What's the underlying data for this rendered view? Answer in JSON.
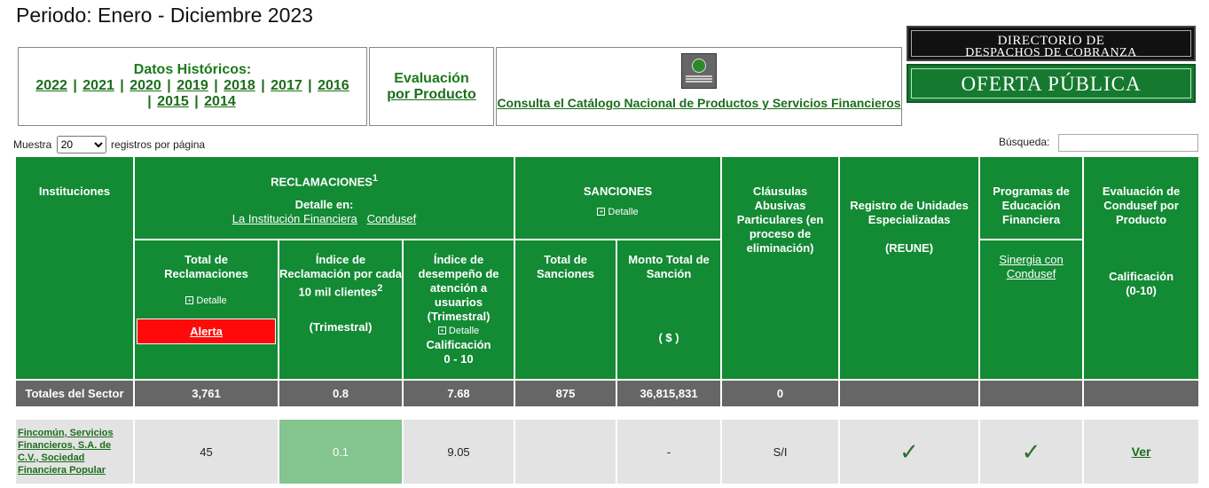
{
  "period": "Periodo: Enero - Diciembre 2023",
  "historic": {
    "title": "Datos Históricos:",
    "years": [
      "2022",
      "2021",
      "2020",
      "2019",
      "2018",
      "2017",
      "2016",
      "2015",
      "2014"
    ]
  },
  "eval_product": {
    "line1": "Evaluación",
    "line2": "por Producto"
  },
  "catalog": {
    "link": "Consulta el Catálogo Nacional de Productos y Servicios Financieros",
    "logo": "catalog-logo"
  },
  "directory_banner": {
    "line1": "Directorio de",
    "line2": "despachos de cobranza"
  },
  "oferta_banner": "OFERTA PÚBLICA",
  "controls": {
    "show_prefix": "Muestra",
    "page_size": "20",
    "show_suffix": "registros por página",
    "search_label": "Búsqueda:",
    "search_value": ""
  },
  "table": {
    "headers": {
      "institutions": "Instituciones",
      "reclamaciones": "RECLAMACIONES",
      "reclamaciones_sup": "1",
      "detalle_en": "Detalle en:",
      "link_inst": "La Institución Financiera",
      "link_condusef": "Condusef",
      "sanciones": "SANCIONES",
      "detalle": "Detalle",
      "clausulas": "Cláusulas Abusivas Particulares (en proceso de eliminación)",
      "reune": "Registro de Unidades Especializadas",
      "reune_abbr": "(REUNE)",
      "programas": "Programas de Educación Financiera",
      "sinergia": "Sinergia con Condusef",
      "evaluacion": "Evaluación de Condusef por Producto",
      "calificacion": "Calificación",
      "calif_range": "(0-10)",
      "total_reclamaciones": "Total de Reclamaciones",
      "alerta": "Alerta",
      "indice_reclamacion": "Índice de Reclamación por cada 10 mil clientes",
      "indice_sup": "2",
      "trimestral": "(Trimestral)",
      "indice_desempeno": "Índice de desempeño de atención a usuarios (Trimestral)",
      "calif_desempeno": "Calificación",
      "calif_desempeno_range": "0 - 10",
      "total_sanciones": "Total de Sanciones",
      "monto_total": "Monto Total de Sanción",
      "moneda": "( $ )"
    },
    "totals": {
      "label": "Totales del Sector",
      "reclamaciones": "3,761",
      "indice": "0.8",
      "desempeno": "7.68",
      "sanciones": "875",
      "monto": "36,815,831",
      "clausulas": "0"
    },
    "rows": [
      {
        "institution": "Fincomún, Servicios Financieros, S.A. de C.V., Sociedad Financiera Popular",
        "reclamaciones": "45",
        "indice": "0.1",
        "desempeno": "9.05",
        "sanciones": "",
        "monto": "-",
        "clausulas": "S/I",
        "reune": "✓",
        "programas": "✓",
        "evaluacion": "Ver"
      }
    ]
  },
  "colors": {
    "header_green": "#138a34",
    "link_green": "#1b6e1b",
    "alert_red": "#ff0a0a",
    "good_green": "#84c48e",
    "totals_gray": "#666666"
  }
}
